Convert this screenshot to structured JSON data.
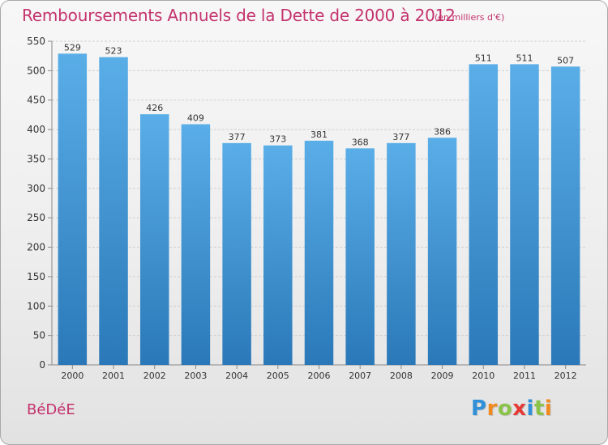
{
  "header": {
    "title": "Remboursements Annuels de la Dette de 2000 à 2012",
    "subtitle": "(en milliers d'€)"
  },
  "footer": {
    "commune": "BéDéE",
    "logo_letters": [
      {
        "char": "P",
        "color": "#2f8fd8"
      },
      {
        "char": "r",
        "color": "#f08a1c"
      },
      {
        "char": "o",
        "color": "#8bc34a"
      },
      {
        "char": "x",
        "color": "#e53935"
      },
      {
        "char": "i",
        "color": "#2f8fd8"
      },
      {
        "char": "t",
        "color": "#8bc34a"
      },
      {
        "char": "i",
        "color": "#f08a1c"
      }
    ]
  },
  "chart_data": {
    "type": "bar",
    "categories": [
      "2000",
      "2001",
      "2002",
      "2003",
      "2004",
      "2005",
      "2006",
      "2007",
      "2008",
      "2009",
      "2010",
      "2011",
      "2012"
    ],
    "values": [
      529,
      523,
      426,
      409,
      377,
      373,
      381,
      368,
      377,
      386,
      511,
      511,
      507
    ],
    "ylim": [
      0,
      550
    ],
    "yticks": [
      0,
      50,
      100,
      150,
      200,
      250,
      300,
      350,
      400,
      450,
      500,
      550
    ],
    "grid": true,
    "bar_color_top": "#5aaee8",
    "bar_color_bottom": "#2a78b8",
    "value_labels": true
  }
}
